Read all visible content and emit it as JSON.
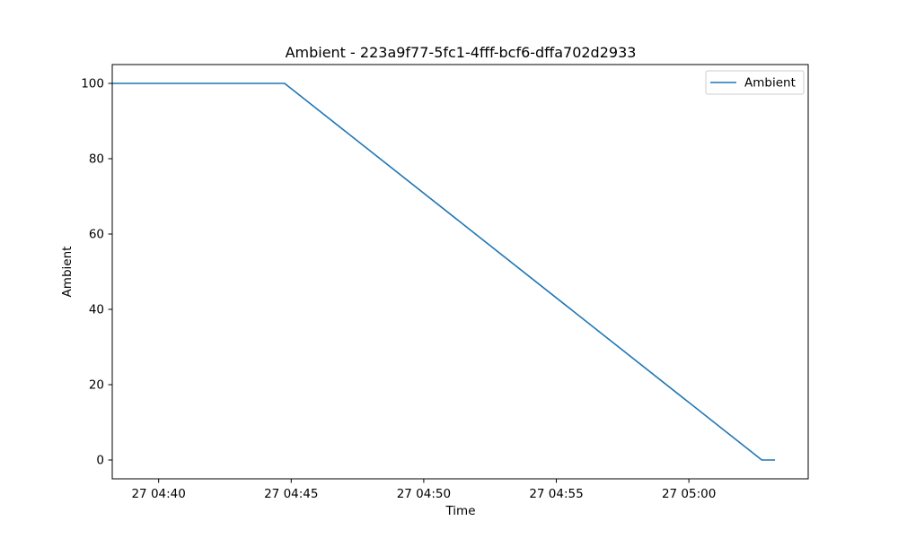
{
  "chart_data": {
    "type": "line",
    "title": "Ambient - 223a9f77-5fc1-4fff-bcf6-dffa702d2933",
    "xlabel": "Time",
    "ylabel": "Ambient",
    "x_type": "time",
    "date_prefix": "27",
    "xlim": [
      "04:38:15",
      "05:04:30"
    ],
    "ylim": [
      -5,
      105
    ],
    "x_ticks": [
      {
        "value": "04:40:00",
        "label": "27 04:40"
      },
      {
        "value": "04:45:00",
        "label": "27 04:45"
      },
      {
        "value": "04:50:00",
        "label": "27 04:50"
      },
      {
        "value": "05:00:00",
        "label": "27 05:00"
      },
      {
        "value": "04:55:00",
        "label": "27 04:55"
      }
    ],
    "y_ticks": [
      0,
      20,
      40,
      60,
      80,
      100
    ],
    "grid": false,
    "legend_position": "top-right",
    "series": [
      {
        "name": "Ambient",
        "color": "#1f77b4",
        "points": [
          {
            "x": "04:38:15",
            "y": 100
          },
          {
            "x": "04:44:45",
            "y": 100
          },
          {
            "x": "05:02:45",
            "y": 0
          },
          {
            "x": "05:03:15",
            "y": 0
          }
        ]
      }
    ]
  }
}
